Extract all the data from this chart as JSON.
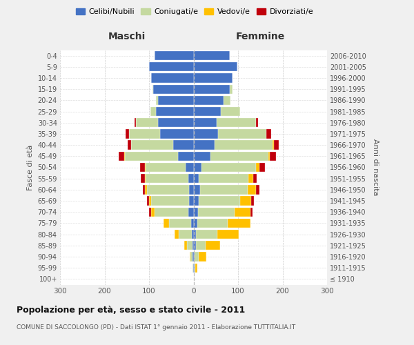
{
  "age_groups": [
    "100+",
    "95-99",
    "90-94",
    "85-89",
    "80-84",
    "75-79",
    "70-74",
    "65-69",
    "60-64",
    "55-59",
    "50-54",
    "45-49",
    "40-44",
    "35-39",
    "30-34",
    "25-29",
    "20-24",
    "15-19",
    "10-14",
    "5-9",
    "0-4"
  ],
  "birth_years": [
    "≤ 1910",
    "1911-1915",
    "1916-1920",
    "1921-1925",
    "1926-1930",
    "1931-1935",
    "1936-1940",
    "1941-1945",
    "1946-1950",
    "1951-1955",
    "1956-1960",
    "1961-1965",
    "1966-1970",
    "1971-1975",
    "1976-1980",
    "1981-1985",
    "1986-1990",
    "1991-1995",
    "1996-2000",
    "2001-2005",
    "2006-2010"
  ],
  "males_celibe": [
    0,
    1,
    2,
    3,
    4,
    5,
    12,
    10,
    10,
    12,
    18,
    35,
    45,
    75,
    80,
    85,
    80,
    90,
    95,
    100,
    88
  ],
  "males_coniugato": [
    0,
    2,
    5,
    12,
    30,
    50,
    75,
    85,
    95,
    95,
    90,
    120,
    95,
    70,
    50,
    12,
    5,
    2,
    0,
    0,
    0
  ],
  "males_vedovo": [
    0,
    0,
    2,
    6,
    8,
    12,
    8,
    5,
    4,
    3,
    2,
    1,
    0,
    0,
    0,
    0,
    0,
    0,
    0,
    0,
    0
  ],
  "males_divorziato": [
    0,
    0,
    0,
    0,
    0,
    0,
    5,
    5,
    5,
    8,
    10,
    12,
    8,
    8,
    2,
    0,
    0,
    0,
    0,
    0,
    0
  ],
  "fem_nubile": [
    0,
    2,
    3,
    5,
    6,
    8,
    10,
    12,
    14,
    12,
    18,
    38,
    48,
    55,
    52,
    62,
    68,
    82,
    88,
    98,
    82
  ],
  "fem_coniugata": [
    0,
    2,
    8,
    22,
    48,
    68,
    82,
    92,
    108,
    112,
    122,
    130,
    130,
    108,
    88,
    42,
    15,
    5,
    0,
    0,
    0
  ],
  "fem_vedova": [
    0,
    5,
    18,
    32,
    48,
    52,
    36,
    26,
    18,
    10,
    8,
    3,
    2,
    0,
    0,
    0,
    0,
    0,
    0,
    0,
    0
  ],
  "fem_divorziata": [
    0,
    0,
    0,
    0,
    0,
    0,
    5,
    5,
    8,
    8,
    12,
    15,
    12,
    12,
    5,
    0,
    0,
    0,
    0,
    0,
    0
  ],
  "color_celibe": "#4472c4",
  "color_coniugato": "#c5d9a0",
  "color_vedovo": "#ffc000",
  "color_divorziato": "#c0000b",
  "xlim": 300,
  "title": "Popolazione per età, sesso e stato civile - 2011",
  "subtitle": "COMUNE DI SACCOLONGO (PD) - Dati ISTAT 1° gennaio 2011 - Elaborazione TUTTITALIA.IT",
  "ylabel_left": "Fasce di età",
  "ylabel_right": "Anni di nascita",
  "label_maschi": "Maschi",
  "label_femmine": "Femmine",
  "legend_labels": [
    "Celibi/Nubili",
    "Coniugati/e",
    "Vedovi/e",
    "Divorziati/e"
  ],
  "bg_color": "#f0f0f0",
  "plot_bg": "#ffffff"
}
